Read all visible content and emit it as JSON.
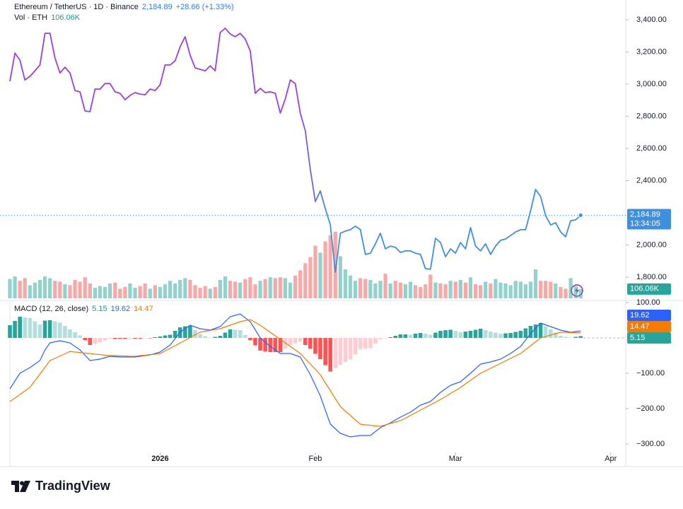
{
  "chart_data": [
    {
      "type": "line",
      "title": "Ethereum / TetherUS · 1D · Binance",
      "price_label": "2,184.89",
      "change_label": "+28.66 (+1.33%)",
      "countdown": "13:34:05",
      "xlim": [
        0,
        123
      ],
      "ylim": [
        1655,
        3523
      ],
      "yticks": [
        {
          "value": 3400,
          "label": "3,400.00"
        },
        {
          "value": 3200,
          "label": "3,200.00"
        },
        {
          "value": 3000,
          "label": "3,000.00"
        },
        {
          "value": 2800,
          "label": "2,800.00"
        },
        {
          "value": 2600,
          "label": "2,600.00"
        },
        {
          "value": 2400,
          "label": "2,400.00"
        },
        {
          "value": 2000,
          "label": "2,000.00"
        },
        {
          "value": 1800,
          "label": "1,800.00"
        }
      ],
      "colors": [
        "#9b3fe4",
        "#3f8fdd"
      ],
      "values": [
        3018,
        3193,
        3149,
        3026,
        3048,
        3083,
        3119,
        3316,
        3316,
        3163,
        3070,
        3105,
        3070,
        2960,
        2952,
        2833,
        2829,
        2969,
        2969,
        3004,
        3004,
        2952,
        2943,
        2903,
        2930,
        2947,
        2938,
        2934,
        2969,
        2960,
        2996,
        3119,
        3119,
        3145,
        3233,
        3295,
        3180,
        3101,
        3092,
        3083,
        3114,
        3083,
        3321,
        3347,
        3312,
        3295,
        3316,
        3281,
        3207,
        2943,
        2974,
        2947,
        2952,
        2943,
        2820,
        2908,
        3026,
        3004,
        2820,
        2710,
        2468,
        2270,
        2336,
        2226,
        2125,
        1831,
        2073,
        2086,
        2095,
        2117,
        2095,
        1941,
        1949,
        2007,
        2073,
        1976,
        1993,
        1985,
        1954,
        1963,
        1963,
        1949,
        1941,
        1853,
        1849,
        2042,
        2015,
        1927,
        1976,
        1949,
        2015,
        1976,
        2108,
        1993,
        1963,
        2007,
        1941,
        1993,
        2029,
        2037,
        2059,
        2081,
        2095,
        2095,
        2213,
        2345,
        2301,
        2182,
        2125,
        2138,
        2081,
        2051,
        2151,
        2156,
        2184.89
      ],
      "volume": {
        "name": "Vol · ETH",
        "value_label": "106.06K",
        "ylim": [
          0,
          3400
        ],
        "up_color": "rgba(38,166,154,0.5)",
        "down_color": "rgba(239,83,80,0.5)",
        "label_color": "#26a69a",
        "values": [
          220,
          250,
          200,
          230,
          150,
          180,
          210,
          250,
          230,
          200,
          190,
          160,
          150,
          210,
          190,
          240,
          170,
          120,
          140,
          130,
          170,
          180,
          110,
          130,
          170,
          120,
          140,
          170,
          110,
          150,
          130,
          160,
          200,
          170,
          210,
          230,
          210,
          150,
          120,
          140,
          110,
          130,
          210,
          250,
          200,
          190,
          180,
          220,
          240,
          160,
          200,
          220,
          240,
          230,
          240,
          230,
          180,
          260,
          320,
          400,
          470,
          600,
          520,
          650,
          720,
          760,
          480,
          330,
          260,
          200,
          230,
          220,
          210,
          170,
          200,
          280,
          170,
          200,
          180,
          160,
          190,
          150,
          130,
          160,
          270,
          180,
          170,
          160,
          200,
          190,
          210,
          180,
          240,
          160,
          150,
          190,
          170,
          220,
          180,
          170,
          150,
          200,
          190,
          160,
          190,
          330,
          200,
          200,
          190,
          170,
          130,
          110,
          230,
          140,
          106.06
        ]
      }
    },
    {
      "type": "macd",
      "title": "MACD (12, 26, close)",
      "xlim": [
        0,
        123
      ],
      "ylim": [
        -324,
        100
      ],
      "xticks": [
        {
          "value": 30,
          "label": "2026"
        },
        {
          "value": 61,
          "label": "Feb"
        },
        {
          "value": 89,
          "label": "Mar"
        },
        {
          "value": 120,
          "label": "Apr"
        }
      ],
      "yticks": [
        {
          "value": 100,
          "label": "100.00"
        },
        {
          "value": -100,
          "label": "−100.00"
        },
        {
          "value": -200,
          "label": "−200.00"
        },
        {
          "value": -300,
          "label": "−300.00"
        }
      ],
      "histogram": {
        "colors": [
          "#26a69a",
          "#b2dfdb",
          "#ff5252",
          "#ffcdd2"
        ],
        "values": [
          36,
          48,
          60,
          58,
          56,
          47,
          38,
          49,
          50,
          47,
          43,
          34,
          24,
          16,
          7,
          -6,
          -20,
          -16,
          -13,
          -7,
          -2,
          -3,
          -3,
          -3,
          -2,
          -2,
          -2,
          -1,
          -1,
          2,
          4,
          7,
          9,
          20,
          30,
          33,
          35,
          22,
          10,
          5,
          1,
          3,
          6,
          15,
          24,
          23,
          22,
          8,
          -6,
          -21,
          -36,
          -38,
          -40,
          -40,
          -40,
          -30,
          -20,
          -15,
          -10,
          -20,
          -30,
          -45,
          -60,
          -77,
          -95,
          -85,
          -76,
          -68,
          -61,
          -46,
          -32,
          -30,
          -29,
          -16,
          -4,
          -1,
          2,
          6,
          10,
          10,
          9,
          12,
          14,
          12,
          9,
          15,
          20,
          22,
          23,
          20,
          16,
          18,
          20,
          23,
          26,
          22,
          18,
          15,
          12,
          13,
          14,
          17,
          20,
          27,
          34,
          38,
          42,
          33,
          24,
          15,
          6,
          3,
          1,
          3,
          5.15
        ]
      },
      "series": [
        {
          "color": "#2962ff",
          "values": [
            -144,
            -122,
            -100,
            -92,
            -84,
            -74,
            -64,
            -34,
            -14,
            -11,
            -8,
            -11,
            -14,
            -24,
            -34,
            -49,
            -64,
            -62,
            -60,
            -56,
            -52,
            -53,
            -54,
            -54,
            -54,
            -54,
            -52,
            -50,
            -48,
            -44,
            -40,
            -30,
            -20,
            -2,
            16,
            26,
            36,
            31,
            26,
            24,
            22,
            27,
            32,
            46,
            60,
            64,
            68,
            57,
            46,
            23,
            0,
            -12,
            -24,
            -34,
            -44,
            -44,
            -44,
            -49,
            -54,
            -79,
            -104,
            -134,
            -164,
            -204,
            -244,
            -257,
            -270,
            -275,
            -280,
            -278,
            -276,
            -276,
            -276,
            -265,
            -254,
            -247,
            -240,
            -232,
            -224,
            -217,
            -210,
            -200,
            -190,
            -185,
            -180,
            -167,
            -154,
            -144,
            -134,
            -129,
            -124,
            -112,
            -100,
            -87,
            -74,
            -71,
            -68,
            -64,
            -60,
            -52,
            -44,
            -34,
            -24,
            -6,
            12,
            27,
            42,
            37,
            32,
            27,
            22,
            19,
            16,
            18,
            19.62
          ]
        },
        {
          "color": "#f57c00",
          "values": [
            -180,
            -170,
            -160,
            -150,
            -140,
            -121,
            -102,
            -83,
            -64,
            -58,
            -51,
            -45,
            -38,
            -40,
            -41,
            -43,
            -44,
            -46,
            -47,
            -49,
            -50,
            -50,
            -51,
            -51,
            -52,
            -52,
            -50,
            -49,
            -47,
            -46,
            -44,
            -37,
            -29,
            -22,
            -14,
            -7,
            1,
            9,
            16,
            19,
            21,
            24,
            26,
            31,
            36,
            41,
            46,
            49,
            52,
            44,
            36,
            26,
            16,
            6,
            -4,
            -14,
            -24,
            -34,
            -44,
            -59,
            -74,
            -89,
            -104,
            -127,
            -149,
            -172,
            -194,
            -207,
            -219,
            -232,
            -244,
            -246,
            -247,
            -249,
            -250,
            -246,
            -242,
            -238,
            -234,
            -227,
            -219,
            -212,
            -204,
            -197,
            -189,
            -182,
            -174,
            -166,
            -157,
            -149,
            -140,
            -130,
            -120,
            -110,
            -100,
            -93,
            -86,
            -79,
            -72,
            -65,
            -58,
            -51,
            -44,
            -33,
            -22,
            -11,
            0,
            4,
            8,
            12,
            16,
            16,
            15,
            15,
            14.47
          ]
        }
      ]
    }
  ],
  "brand": "TradingView"
}
